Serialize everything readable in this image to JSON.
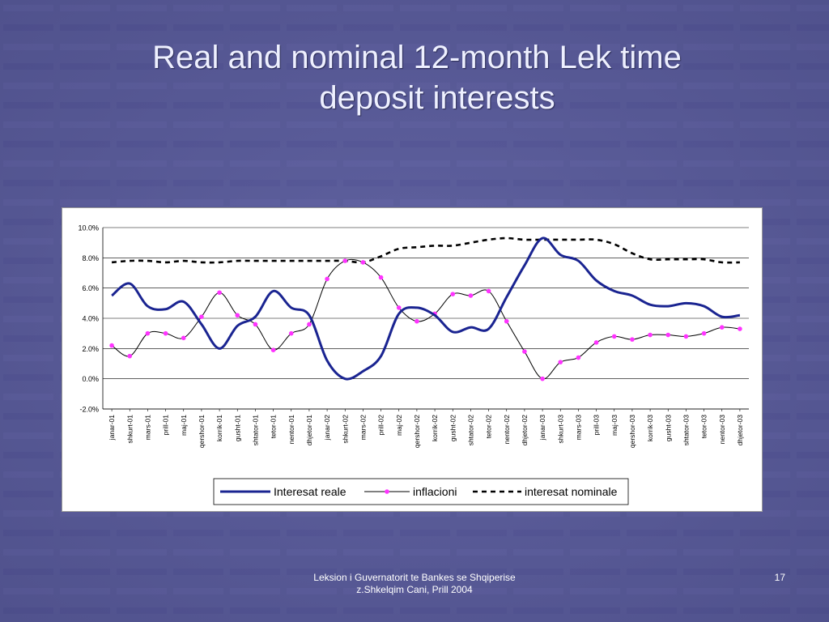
{
  "slide": {
    "title_line1": "Real and nominal 12-month Lek time",
    "title_line2": "deposit interests",
    "footer_line1": "Leksion i Guvernatorit te Bankes se Shqiperise",
    "footer_line2": "z.Shkelqim Cani, Prill 2004",
    "page_number": "17"
  },
  "colors": {
    "background": "#5a5c98",
    "real": "#1a2491",
    "inflation_line": "#000000",
    "inflation_marker": "#ff33ff",
    "nominal": "#000000"
  },
  "chart_data": {
    "type": "line",
    "title": "",
    "xlabel": "",
    "ylabel": "",
    "ylim": [
      -2,
      10
    ],
    "yticks": [
      -2,
      0,
      2,
      4,
      6,
      8,
      10
    ],
    "ytick_labels": [
      "-2.0%",
      "0.0%",
      "2.0%",
      "4.0%",
      "6.0%",
      "8.0%",
      "10.0%"
    ],
    "grid": true,
    "legend_position": "bottom",
    "categories": [
      "janar-01",
      "shkurt-01",
      "mars-01",
      "prill-01",
      "maj-01",
      "qershor-01",
      "korrik-01",
      "gusht-01",
      "shtator-01",
      "tetor-01",
      "nentor-01",
      "dhjetor-01",
      "janar-02",
      "shkurt-02",
      "mars-02",
      "prill-02",
      "maj-02",
      "qershor-02",
      "korrik-02",
      "gusht-02",
      "shtator-02",
      "tetor-02",
      "nentor-02",
      "dhjetor-02",
      "janar-03",
      "shkurt-03",
      "mars-03",
      "prill-03",
      "maj-03",
      "qershor-03",
      "korrik-03",
      "gusht-03",
      "shtator-03",
      "tetor-03",
      "nentor-03",
      "dhjetor-03"
    ],
    "series": [
      {
        "name": "Interesat reale",
        "style": "solid-thick",
        "values": [
          5.5,
          6.3,
          4.8,
          4.6,
          5.1,
          3.6,
          2.0,
          3.5,
          4.1,
          5.8,
          4.7,
          4.2,
          1.2,
          0.0,
          0.5,
          1.5,
          4.3,
          4.7,
          4.2,
          3.1,
          3.4,
          3.3,
          5.4,
          7.5,
          9.3,
          8.2,
          7.8,
          6.5,
          5.8,
          5.5,
          4.9,
          4.8,
          5.0,
          4.8,
          4.1,
          4.2
        ]
      },
      {
        "name": "inflacioni",
        "style": "solid-thin-markers",
        "values": [
          2.2,
          1.5,
          3.0,
          3.0,
          2.7,
          4.1,
          5.7,
          4.2,
          3.6,
          1.9,
          3.0,
          3.6,
          6.6,
          7.8,
          7.7,
          6.7,
          4.7,
          3.8,
          4.3,
          5.6,
          5.5,
          5.8,
          3.8,
          1.8,
          0.0,
          1.1,
          1.4,
          2.4,
          2.8,
          2.6,
          2.9,
          2.9,
          2.8,
          3.0,
          3.4,
          3.3
        ]
      },
      {
        "name": "interesat nominale",
        "style": "dashed",
        "values": [
          7.7,
          7.8,
          7.8,
          7.7,
          7.8,
          7.7,
          7.7,
          7.8,
          7.8,
          7.8,
          7.8,
          7.8,
          7.8,
          7.8,
          7.7,
          8.1,
          8.6,
          8.7,
          8.8,
          8.8,
          9.0,
          9.2,
          9.3,
          9.2,
          9.2,
          9.2,
          9.2,
          9.2,
          8.9,
          8.3,
          7.9,
          7.9,
          7.9,
          7.9,
          7.7,
          7.7
        ]
      }
    ]
  }
}
